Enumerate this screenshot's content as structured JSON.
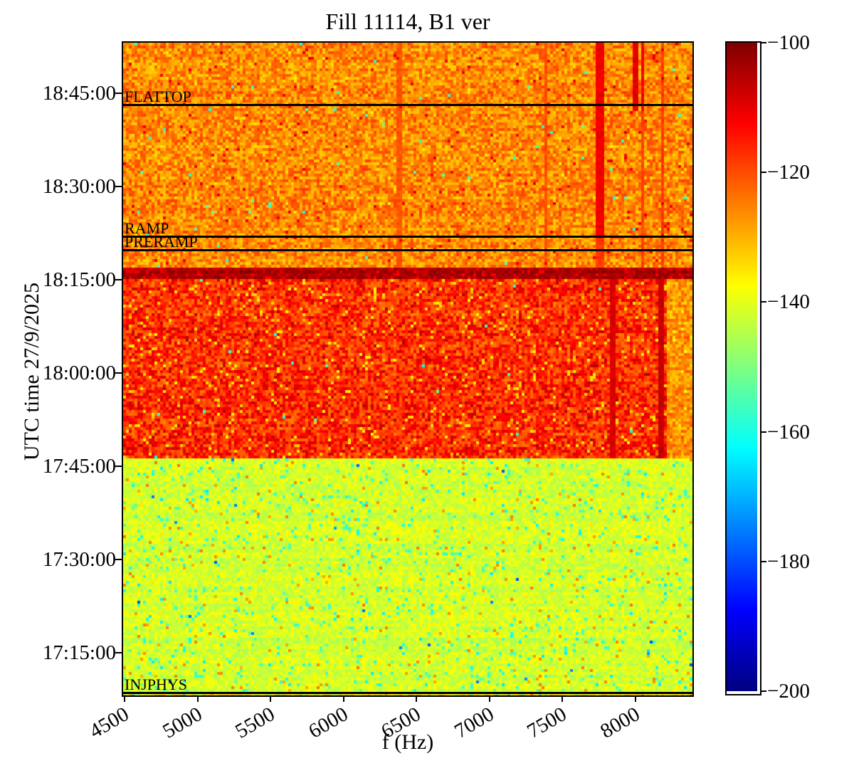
{
  "chart_data": {
    "type": "heatmap",
    "title": "Fill 11114, B1 ver",
    "xlabel": "f (Hz)",
    "ylabel": "UTC time 27/9/2025",
    "colormap": "jet",
    "colorbar_range_db": [
      -200,
      -100
    ],
    "freq_range_hz": [
      4490,
      8390
    ],
    "time_range_utc": [
      "17:08:08",
      "18:53:08"
    ],
    "grid": false,
    "x_ticks": [
      {
        "label": "4500",
        "f": 4500
      },
      {
        "label": "5000",
        "f": 5000
      },
      {
        "label": "5500",
        "f": 5500
      },
      {
        "label": "6000",
        "f": 6000
      },
      {
        "label": "6500",
        "f": 6500
      },
      {
        "label": "7000",
        "f": 7000
      },
      {
        "label": "7500",
        "f": 7500
      },
      {
        "label": "8000",
        "f": 8000
      }
    ],
    "y_ticks": [
      {
        "label": "18:45:00",
        "time": "18:45:00"
      },
      {
        "label": "18:30:00",
        "time": "18:30:00"
      },
      {
        "label": "18:15:00",
        "time": "18:15:00"
      },
      {
        "label": "18:00:00",
        "time": "18:00:00"
      },
      {
        "label": "17:45:00",
        "time": "17:45:00"
      },
      {
        "label": "17:30:00",
        "time": "17:30:00"
      },
      {
        "label": "17:15:00",
        "time": "17:15:00"
      }
    ],
    "colorbar_ticks": [
      {
        "label": "−100",
        "value": -100
      },
      {
        "label": "−120",
        "value": -120
      },
      {
        "label": "−140",
        "value": -140
      },
      {
        "label": "−160",
        "value": -160
      },
      {
        "label": "−180",
        "value": -180
      },
      {
        "label": "−200",
        "value": -200
      }
    ],
    "beam_modes": [
      {
        "label": "FLATTOP",
        "time": "18:43:06",
        "line": true
      },
      {
        "label": "RAMP",
        "time": "18:21:54",
        "line": true
      },
      {
        "label": "PRERAMP",
        "time": "18:19:42",
        "line": true
      },
      {
        "label": "INJPHYS",
        "time": "17:08:30",
        "line": true
      }
    ],
    "regions": [
      {
        "name": "injection-plateau",
        "t_from": "17:08:08",
        "t_to": "17:46:06",
        "base_db": -142,
        "spread_db": 4,
        "speckles": [
          {
            "p": 0.05,
            "db": -137,
            "jitter": 2
          },
          {
            "p": 0.04,
            "db": -156,
            "jitter": 3
          },
          {
            "p": 0.015,
            "db": -162,
            "jitter": 3
          },
          {
            "p": 0.02,
            "db": -127,
            "jitter": 3
          },
          {
            "p": 0.0015,
            "db": -176,
            "jitter": 5
          }
        ]
      },
      {
        "name": "preramp-plateau",
        "t_from": "17:46:06",
        "t_to": "18:14:54",
        "base_db": -117,
        "spread_db": 8,
        "speckles": [
          {
            "p": 0.05,
            "db": -134,
            "jitter": 3
          },
          {
            "p": 0.03,
            "db": -107,
            "jitter": 2
          },
          {
            "p": 0.002,
            "db": -158,
            "jitter": 4
          }
        ]
      },
      {
        "name": "hot-transition-band",
        "t_from": "18:14:54",
        "t_to": "18:16:48",
        "base_db": -104,
        "spread_db": 3,
        "speckles": [
          {
            "p": 0.15,
            "db": -110,
            "jitter": 3
          }
        ]
      },
      {
        "name": "ramp-and-flattop",
        "t_from": "18:16:48",
        "t_to": "18:53:08",
        "base_db": -126,
        "spread_db": 7,
        "speckles": [
          {
            "p": 0.004,
            "db": -157,
            "jitter": 4
          },
          {
            "p": 0.012,
            "db": -111,
            "jitter": 2
          },
          {
            "p": 0.03,
            "db": -133,
            "jitter": 3
          }
        ]
      }
    ],
    "light_strip": {
      "f_from": 8205,
      "f_to": 8390,
      "t_from": "17:46:06",
      "t_to": "18:14:54",
      "base_db": -127,
      "spread_db": 6,
      "speckles": [
        {
          "p": 0.02,
          "db": -136,
          "jitter": 3
        }
      ]
    },
    "streaks": [
      {
        "f": 7756,
        "halfwidth_hz": 25,
        "t_from": "18:22:00",
        "t_to": "18:53:08",
        "db": -111
      },
      {
        "f": 7756,
        "halfwidth_hz": 20,
        "t_from": "18:16:48",
        "t_to": "18:22:00",
        "db": -118
      },
      {
        "f": 8000,
        "halfwidth_hz": 22,
        "t_from": "18:42:00",
        "t_to": "18:53:08",
        "db": -110
      },
      {
        "f": 8049,
        "halfwidth_hz": 18,
        "t_from": "18:42:00",
        "t_to": "18:53:08",
        "db": -112
      },
      {
        "f": 8049,
        "halfwidth_hz": 15,
        "t_from": "18:16:48",
        "t_to": "18:42:00",
        "db": -119
      },
      {
        "f": 7386,
        "halfwidth_hz": 15,
        "t_from": "18:16:48",
        "t_to": "18:53:08",
        "db": -120
      },
      {
        "f": 6377,
        "halfwidth_hz": 15,
        "t_from": "17:46:06",
        "t_to": "18:53:08",
        "db": -121
      },
      {
        "f": 7849,
        "halfwidth_hz": 20,
        "t_from": "17:46:06",
        "t_to": "18:14:54",
        "db": -109
      },
      {
        "f": 8181,
        "halfwidth_hz": 20,
        "t_from": "17:46:06",
        "t_to": "18:16:48",
        "db": -107
      },
      {
        "f": 8181,
        "halfwidth_hz": 15,
        "t_from": "18:16:48",
        "t_to": "18:53:08",
        "db": -118
      }
    ],
    "colors": {
      "jet_stops": [
        {
          "t": 0.0,
          "hex": "#000080"
        },
        {
          "t": 0.125,
          "hex": "#0000ff"
        },
        {
          "t": 0.375,
          "hex": "#00ffff"
        },
        {
          "t": 0.625,
          "hex": "#ffff00"
        },
        {
          "t": 0.875,
          "hex": "#ff0000"
        },
        {
          "t": 1.0,
          "hex": "#800000"
        }
      ],
      "axis": "#000000",
      "background": "#ffffff"
    }
  }
}
